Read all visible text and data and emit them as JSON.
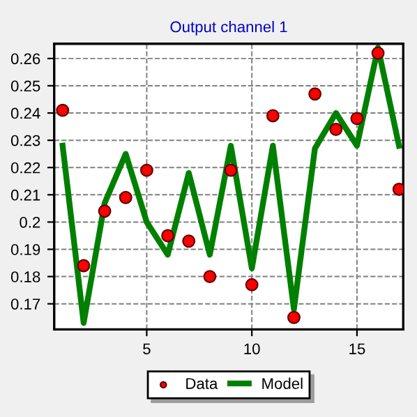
{
  "chart_data": {
    "type": "line",
    "title": "Output channel 1",
    "x": [
      1,
      2,
      3,
      4,
      5,
      6,
      7,
      8,
      9,
      10,
      11,
      12,
      13,
      14,
      15,
      16,
      17
    ],
    "series": [
      {
        "name": "Data",
        "type": "scatter",
        "color": "#ff0000",
        "marker": "circle",
        "values": [
          0.241,
          0.184,
          0.204,
          0.209,
          0.219,
          0.195,
          0.193,
          0.18,
          0.219,
          0.177,
          0.239,
          0.165,
          0.247,
          0.234,
          0.238,
          0.262,
          0.212
        ]
      },
      {
        "name": "Model",
        "color": "#008000",
        "marker": "none",
        "line_style": "solid",
        "values": [
          0.228,
          0.163,
          0.207,
          0.225,
          0.2,
          0.188,
          0.218,
          0.188,
          0.228,
          0.183,
          0.228,
          0.168,
          0.227,
          0.24,
          0.228,
          0.264,
          0.228
        ]
      }
    ],
    "xlim": [
      0.6,
      17.2
    ],
    "xticks": [
      5,
      10,
      15
    ],
    "ylim": [
      0.1606,
      0.2654
    ],
    "yticks": [
      0.17,
      0.18,
      0.19,
      0.2,
      0.21,
      0.22,
      0.23,
      0.24,
      0.25,
      0.26
    ],
    "grid": true,
    "legend": "bottom"
  }
}
